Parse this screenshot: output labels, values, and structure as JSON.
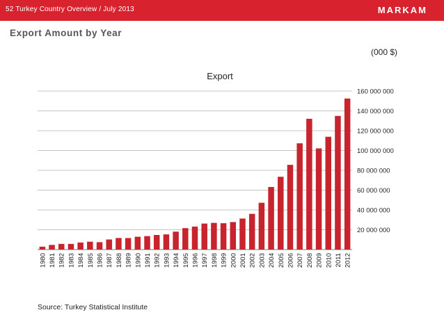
{
  "header": {
    "breadcrumb": "52  Turkey Country Overview / July 2013",
    "brand": "MARKAM"
  },
  "page": {
    "heading": "Export Amount by Year",
    "unit": "(000 $)",
    "source": "Source: Turkey Statistical Institute"
  },
  "colors": {
    "accent": "#d8232f",
    "bar": "#c8242d"
  },
  "chart_data": {
    "type": "bar",
    "title": "Export",
    "xlabel": "",
    "ylabel": "",
    "ylim": [
      0,
      160000000
    ],
    "yticks": [
      20000000,
      40000000,
      60000000,
      80000000,
      100000000,
      120000000,
      140000000,
      160000000
    ],
    "ytick_labels": [
      "20 000 000",
      "40 000 000",
      "60 000 000",
      "80 000 000",
      "100 000 000",
      "120 000 000",
      "140 000 000",
      "160 000 000"
    ],
    "y_axis_side": "right",
    "grid": true,
    "legend": false,
    "categories": [
      "1980",
      "1981",
      "1982",
      "1983",
      "1984",
      "1985",
      "1986",
      "1987",
      "1988",
      "1989",
      "1990",
      "1991",
      "1992",
      "1993",
      "1994",
      "1995",
      "1996",
      "1997",
      "1998",
      "1999",
      "2000",
      "2001",
      "2002",
      "2003",
      "2004",
      "2005",
      "2006",
      "2007",
      "2008",
      "2009",
      "2010",
      "2011",
      "2012"
    ],
    "values": [
      2910000,
      4700000,
      5750000,
      5730000,
      7130000,
      7960000,
      7460000,
      10190000,
      11660000,
      11620000,
      12960000,
      13590000,
      14720000,
      15350000,
      18110000,
      21640000,
      23220000,
      26260000,
      26970000,
      26590000,
      27780000,
      31330000,
      36060000,
      47250000,
      63170000,
      73480000,
      85530000,
      107270000,
      132030000,
      102140000,
      113880000,
      134910000,
      152460000
    ]
  }
}
